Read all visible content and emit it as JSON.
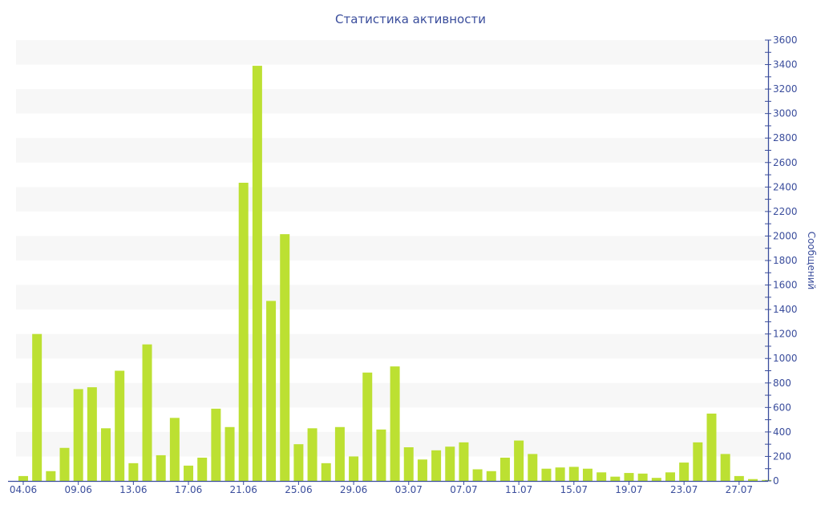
{
  "chart_data": {
    "type": "bar",
    "title": "Статистика активности",
    "xlabel": "",
    "ylabel": "Сообщений",
    "ylim": [
      0,
      3600
    ],
    "ytick_step": 200,
    "yaxis_position": "right",
    "grid": "alternating horizontal bands",
    "bar_color": "#bce032",
    "text_color": "#3a4d9c",
    "band_color": "#f7f7f7",
    "categories": [
      "04.06",
      "",
      "",
      "",
      "09.06",
      "",
      "",
      "",
      "13.06",
      "",
      "",
      "",
      "17.06",
      "",
      "",
      "",
      "21.06",
      "",
      "",
      "",
      "25.06",
      "",
      "",
      "",
      "29.06",
      "",
      "",
      "",
      "03.07",
      "",
      "",
      "",
      "07.07",
      "",
      "",
      "",
      "11.07",
      "",
      "",
      "",
      "15.07",
      "",
      "",
      "",
      "19.07",
      "",
      "",
      "",
      "23.07",
      "",
      "",
      "",
      "27.07",
      "",
      ""
    ],
    "values": [
      40,
      1200,
      80,
      270,
      750,
      765,
      430,
      900,
      145,
      1115,
      210,
      515,
      125,
      190,
      590,
      440,
      2435,
      3390,
      1470,
      2015,
      300,
      430,
      145,
      440,
      200,
      885,
      420,
      935,
      275,
      175,
      250,
      280,
      315,
      95,
      80,
      190,
      330,
      220,
      100,
      110,
      115,
      100,
      70,
      35,
      65,
      60,
      25,
      70,
      150,
      315,
      550,
      220,
      40,
      15,
      8
    ]
  }
}
